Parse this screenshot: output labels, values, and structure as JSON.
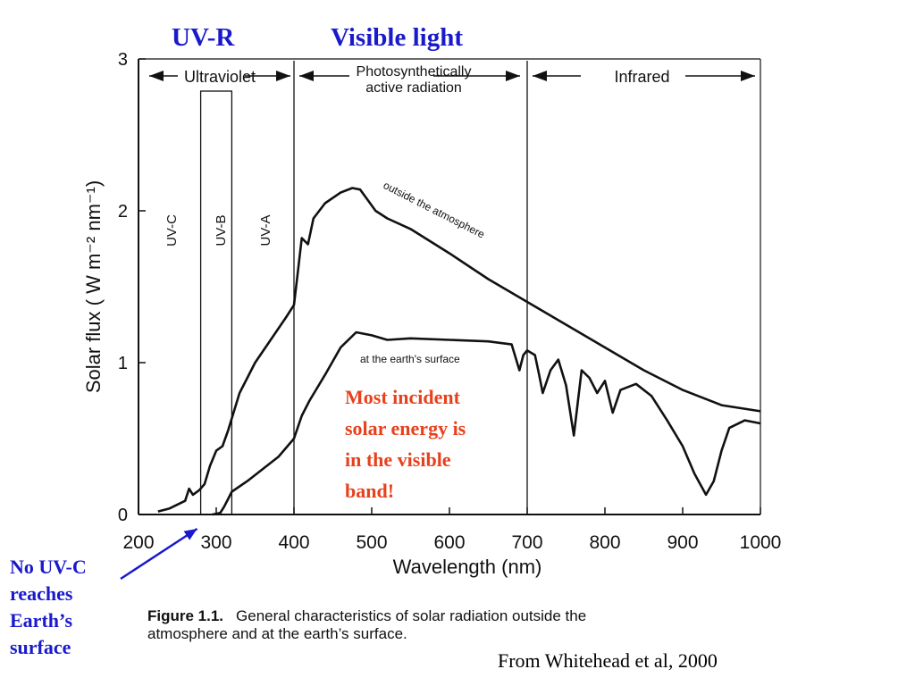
{
  "slide": {
    "uv_r_label": "UV-R",
    "visible_label": "Visible light",
    "note_lines": [
      "Most incident",
      "solar energy is",
      "in the visible",
      "band!"
    ],
    "arrow_note_lines": [
      "No UV-C",
      "reaches",
      "Earth’s",
      "surface"
    ],
    "source": "From Whitehead et al, 2000",
    "colors": {
      "uv_r": "#1a1acc",
      "visible": "#1a1acc",
      "note": "#e8401c",
      "arrow_note": "#1a1acc"
    }
  },
  "figure_caption": {
    "number": "Figure 1.1.",
    "text_line1": "General characteristics of solar radiation outside the",
    "text_line2": "atmosphere and at the earth’s surface."
  },
  "chart_data": {
    "type": "line",
    "xlabel": "Wavelength  (nm)",
    "ylabel": "Solar flux ( W m⁻² nm⁻¹)",
    "xlim": [
      200,
      1000
    ],
    "ylim": [
      0,
      3
    ],
    "xticks": [
      200,
      300,
      400,
      500,
      600,
      700,
      800,
      900,
      1000
    ],
    "yticks": [
      0,
      1,
      2,
      3
    ],
    "grid": false,
    "series": [
      {
        "name": "outside the atmosphere",
        "x": [
          225,
          240,
          260,
          265,
          270,
          278,
          285,
          292,
          300,
          308,
          315,
          330,
          350,
          370,
          390,
          400,
          405,
          410,
          418,
          425,
          440,
          460,
          475,
          485,
          495,
          505,
          520,
          550,
          600,
          650,
          700,
          750,
          800,
          850,
          900,
          950,
          1000
        ],
        "y": [
          0.02,
          0.04,
          0.09,
          0.17,
          0.13,
          0.16,
          0.2,
          0.32,
          0.42,
          0.45,
          0.55,
          0.8,
          1.0,
          1.15,
          1.3,
          1.38,
          1.6,
          1.82,
          1.78,
          1.95,
          2.05,
          2.12,
          2.15,
          2.14,
          2.07,
          2.0,
          1.95,
          1.88,
          1.72,
          1.55,
          1.4,
          1.25,
          1.1,
          0.95,
          0.82,
          0.72,
          0.68
        ]
      },
      {
        "name": "at the earth's surface",
        "x": [
          295,
          305,
          310,
          315,
          320,
          340,
          360,
          380,
          400,
          410,
          420,
          440,
          460,
          480,
          500,
          520,
          550,
          600,
          650,
          680,
          690,
          695,
          700,
          710,
          715,
          720,
          730,
          740,
          750,
          760,
          770,
          780,
          790,
          800,
          810,
          820,
          840,
          860,
          880,
          900,
          915,
          930,
          940,
          950,
          960,
          980,
          1000
        ],
        "y": [
          0.0,
          0.01,
          0.05,
          0.1,
          0.15,
          0.22,
          0.3,
          0.38,
          0.5,
          0.65,
          0.75,
          0.92,
          1.1,
          1.2,
          1.18,
          1.15,
          1.16,
          1.15,
          1.14,
          1.12,
          0.95,
          1.05,
          1.08,
          1.05,
          0.93,
          0.8,
          0.95,
          1.02,
          0.85,
          0.52,
          0.95,
          0.9,
          0.8,
          0.88,
          0.67,
          0.82,
          0.86,
          0.78,
          0.62,
          0.45,
          0.27,
          0.13,
          0.22,
          0.42,
          0.57,
          0.62,
          0.6
        ]
      }
    ],
    "annotations": {
      "bands": [
        {
          "label": "Ultraviolet",
          "from": 200,
          "to": 400
        },
        {
          "label": "Photosynthetically active radiation",
          "line1": "Photosynthetically",
          "line2": "active radiation",
          "from": 400,
          "to": 700
        },
        {
          "label": "Infrared",
          "from": 700,
          "to": 1000
        }
      ],
      "uv_bands": [
        {
          "label": "UV-C",
          "center": 250
        },
        {
          "label": "UV-B",
          "center": 300
        },
        {
          "label": "UV-A",
          "center": 355
        }
      ],
      "boundaries_nm": [
        280,
        320,
        400,
        700
      ]
    }
  }
}
